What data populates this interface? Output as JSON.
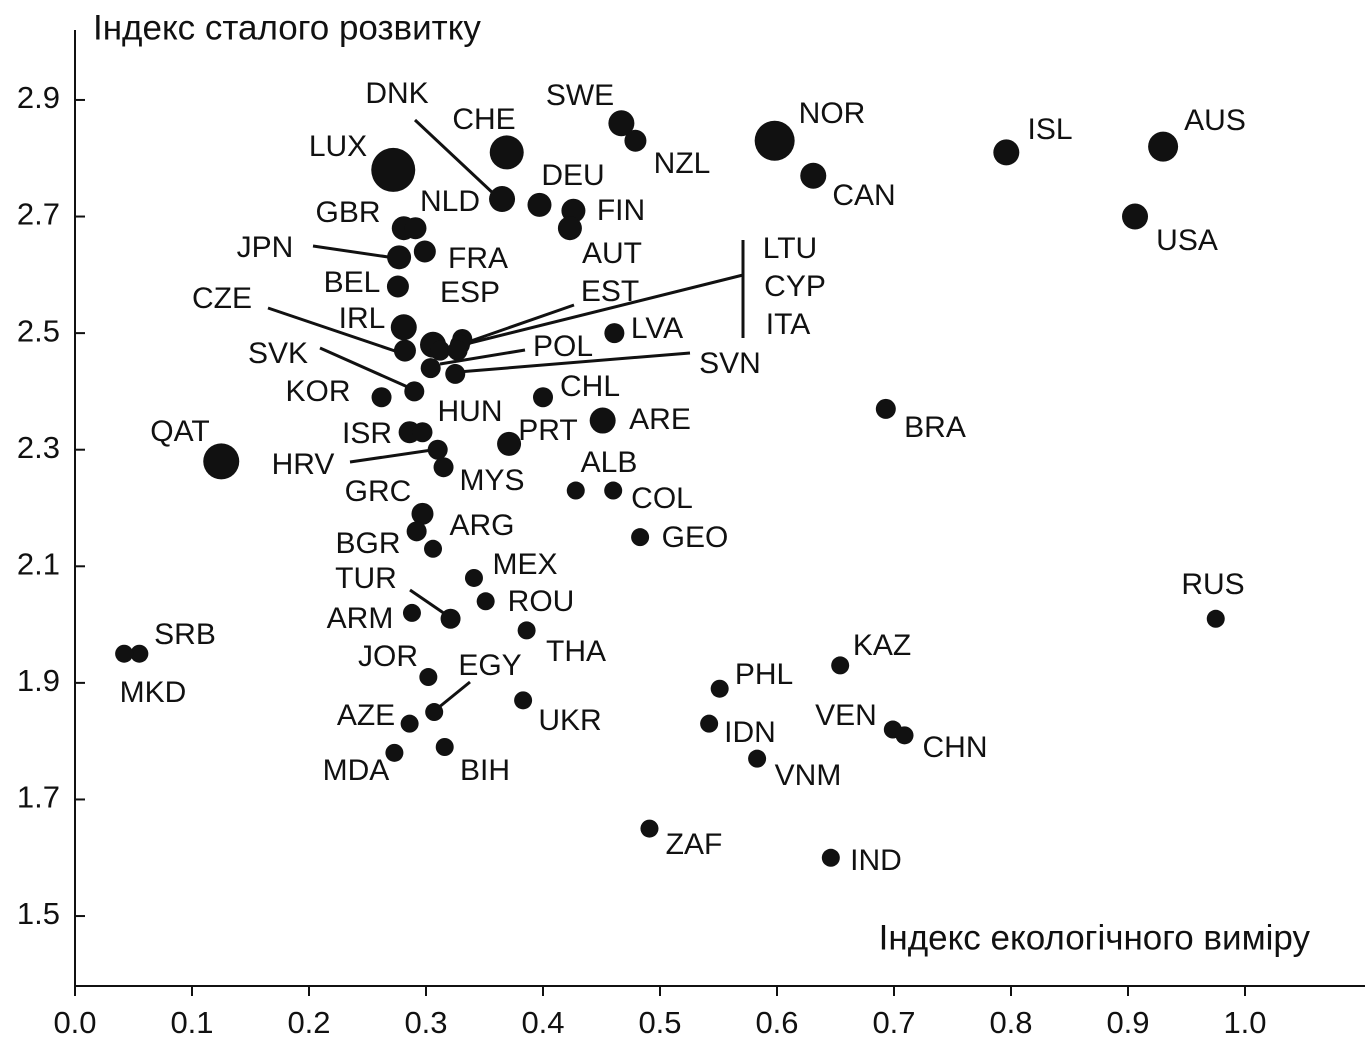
{
  "chart_data": {
    "type": "scatter",
    "title": "Індекс сталого розвитку",
    "x_label": "Індекс екологічного виміру",
    "color": "#111111",
    "labels": [
      "LUX",
      "CHE",
      "DNK",
      "SWE",
      "NZL",
      "NOR",
      "CAN",
      "ISL",
      "AUS",
      "USA",
      "DEU",
      "FIN",
      "AUT",
      "GBR",
      "NLD",
      "JPN",
      "FRA",
      "BEL",
      "IRL",
      "CZE",
      "ESP",
      "EST",
      "LTU",
      "CYP",
      "ITA",
      "POL",
      "SVN",
      "SVK",
      "KOR",
      "LVA",
      "CHL",
      "ARE",
      "BRA",
      "QAT",
      "ISR",
      "HUN",
      "PRT",
      "HRV",
      "MYS",
      "ALB",
      "COL",
      "GRC",
      "ARG",
      "BGR",
      "GEO",
      "MEX",
      "ROU",
      "TUR",
      "ARM",
      "THA",
      "SRB",
      "MKD",
      "RUS",
      "KAZ",
      "JOR",
      "EGY",
      "PHL",
      "AZE",
      "UKR",
      "IDN",
      "VEN",
      "CHN",
      "MDA",
      "BIH",
      "VNM",
      "ZAF",
      "IND"
    ],
    "x": [
      0.272,
      0.369,
      0.365,
      0.467,
      0.479,
      0.598,
      0.631,
      0.796,
      0.93,
      0.906,
      0.397,
      0.426,
      0.423,
      0.281,
      0.291,
      0.277,
      0.299,
      0.276,
      0.281,
      0.282,
      0.306,
      0.312,
      0.331,
      0.329,
      0.327,
      0.304,
      0.325,
      0.29,
      0.262,
      0.461,
      0.4,
      0.451,
      0.693,
      0.125,
      0.286,
      0.297,
      0.371,
      0.31,
      0.315,
      0.428,
      0.46,
      0.297,
      0.292,
      0.306,
      0.483,
      0.341,
      0.351,
      0.321,
      0.288,
      0.386,
      0.055,
      0.042,
      0.975,
      0.654,
      0.302,
      0.307,
      0.551,
      0.286,
      0.383,
      0.542,
      0.699,
      0.709,
      0.273,
      0.316,
      0.583,
      0.491,
      0.646
    ],
    "values": [
      2.78,
      2.81,
      2.73,
      2.86,
      2.83,
      2.83,
      2.77,
      2.81,
      2.82,
      2.7,
      2.72,
      2.71,
      2.68,
      2.68,
      2.68,
      2.63,
      2.64,
      2.58,
      2.51,
      2.47,
      2.48,
      2.47,
      2.49,
      2.48,
      2.47,
      2.44,
      2.43,
      2.4,
      2.39,
      2.5,
      2.39,
      2.35,
      2.37,
      2.28,
      2.33,
      2.33,
      2.31,
      2.3,
      2.27,
      2.23,
      2.23,
      2.19,
      2.16,
      2.13,
      2.15,
      2.08,
      2.04,
      2.01,
      2.02,
      1.99,
      1.95,
      1.95,
      2.01,
      1.93,
      1.91,
      1.85,
      1.89,
      1.83,
      1.87,
      1.83,
      1.82,
      1.81,
      1.78,
      1.79,
      1.77,
      1.65,
      1.6
    ],
    "sizes": [
      22,
      17,
      13,
      13,
      11,
      20,
      13,
      13,
      15,
      13,
      12,
      12,
      12,
      12,
      11,
      12,
      11,
      11,
      13,
      11,
      13,
      10,
      10,
      10,
      10,
      10,
      10,
      10,
      10,
      10,
      10,
      13,
      10,
      18,
      11,
      10,
      12,
      10,
      10,
      9,
      9,
      11,
      10,
      9,
      9,
      9,
      9,
      10,
      9,
      9,
      9,
      9,
      9,
      9,
      9,
      9,
      9,
      9,
      9,
      9,
      9,
      9,
      9,
      9,
      9,
      9,
      9
    ],
    "xlim": [
      0,
      1.1
    ],
    "ylim": [
      1.38,
      3.02
    ],
    "xticks": [
      {
        "value": 0,
        "label": "0.0"
      },
      0.1,
      0.2,
      0.3,
      0.4,
      0.5,
      0.6,
      0.7,
      0.8,
      0.9,
      {
        "value": 1,
        "label": "1.0"
      }
    ],
    "yticks": [
      1.5,
      1.7,
      1.9,
      2.1,
      2.3,
      2.5,
      2.7,
      2.9
    ]
  }
}
